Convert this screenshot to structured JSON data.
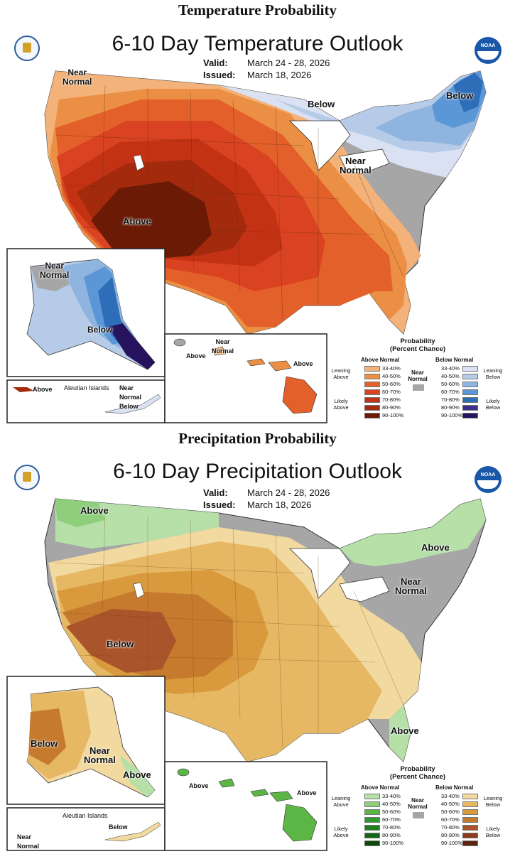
{
  "temperature": {
    "section_heading": "Temperature Probability",
    "title": "6-10 Day Temperature Outlook",
    "valid_label": "Valid:",
    "valid_value": "March 24 - 28, 2026",
    "issued_label": "Issued:",
    "issued_value": "March 18, 2026",
    "noaa_badge": "NOAA",
    "map_labels": {
      "near_normal_nw": "Near\nNormal",
      "below_ne1": "Below",
      "below_ne2": "Below",
      "near_normal_east": "Near\nNormal",
      "above": "Above",
      "ak_near_normal": "Near\nNormal",
      "ak_below": "Below",
      "hi_near_normal": "Near\nNormal",
      "hi_above_w": "Above",
      "hi_above_e": "Above",
      "aleutian_above": "Above",
      "aleutian_islands": "Aleutian Islands",
      "aleutian_near_normal_below": "Near\nNormal\nBelow"
    },
    "legend": {
      "title": "Probability\n(Percent Chance)",
      "left_header": "Above Normal",
      "right_header": "Below Normal",
      "near_normal": "Near\nNormal",
      "leaning_left": "Leaning\nAbove",
      "likely_left": "Likely\nAbove",
      "leaning_right": "Leaning\nBelow",
      "likely_right": "Likely\nBelow",
      "left_ranges": [
        "33-40%",
        "40-50%",
        "50-60%",
        "60-70%",
        "70-80%",
        "80-90%",
        "90-100%"
      ],
      "right_ranges": [
        "33-40%",
        "40-50%",
        "50-60%",
        "60-70%",
        "70-80%",
        "80-90%",
        "90-100%"
      ],
      "left_colors": [
        "#f2b279",
        "#eb8f45",
        "#e4602b",
        "#d94321",
        "#c43214",
        "#a32a0d",
        "#6b1a05"
      ],
      "right_colors": [
        "#d9e1f2",
        "#b6cbe8",
        "#8fb4e0",
        "#5b97d6",
        "#2e6db8",
        "#3b2e8c",
        "#26135e"
      ]
    }
  },
  "precipitation": {
    "section_heading": "Precipitation Probability",
    "title": "6-10 Day Precipitation Outlook",
    "valid_label": "Valid:",
    "valid_value": "March 24 - 28, 2026",
    "issued_label": "Issued:",
    "issued_value": "March 18, 2026",
    "noaa_badge": "NOAA",
    "map_labels": {
      "above_nw": "Above",
      "above_ne": "Above",
      "near_normal_ne": "Near\nNormal",
      "below": "Below",
      "above_fl": "Above",
      "ak_below": "Below",
      "ak_near_normal": "Near\nNormal",
      "ak_above": "Above",
      "hi_above_w": "Above",
      "hi_above_e": "Above",
      "aleutian_islands": "Aleutian Islands",
      "aleutian_below": "Below",
      "aleutian_near_normal": "Near\nNormal"
    },
    "legend": {
      "title": "Probability\n(Percent Chance)",
      "left_header": "Above Normal",
      "right_header": "Below Normal",
      "near_normal": "Near\nNormal",
      "leaning_left": "Leaning\nAbove",
      "likely_left": "Likely\nAbove",
      "leaning_right": "Leaning\nBelow",
      "likely_right": "Likely\nBelow",
      "left_ranges": [
        "33-40%",
        "40-50%",
        "50-60%",
        "60-70%",
        "70-80%",
        "80-90%",
        "90-100%"
      ],
      "right_ranges": [
        "33-40%",
        "40-50%",
        "50-60%",
        "60-70%",
        "70-80%",
        "80-90%",
        "90-100%"
      ],
      "left_colors": [
        "#b6e0a8",
        "#8fcf7c",
        "#5bb646",
        "#2f9a2a",
        "#1f7f1d",
        "#166515",
        "#0d4a0c"
      ],
      "right_colors": [
        "#f2d9a0",
        "#e7b864",
        "#d99a3e",
        "#c57a2e",
        "#a9542a",
        "#8a3a1d",
        "#5e2410"
      ]
    }
  },
  "colors": {
    "near_normal": "#a6a6a6",
    "above_33": "#f2b279",
    "above_50": "#e4602b",
    "above_80": "#a32a0d",
    "above_90": "#6b1a05",
    "below_33": "#d9e1f2",
    "below_70": "#2e6db8",
    "wet_33": "#b6e0a8",
    "dry_33": "#f2d9a0",
    "dry_40": "#e7b864",
    "dry_60": "#c57a2e",
    "dry_70": "#a9542a"
  }
}
